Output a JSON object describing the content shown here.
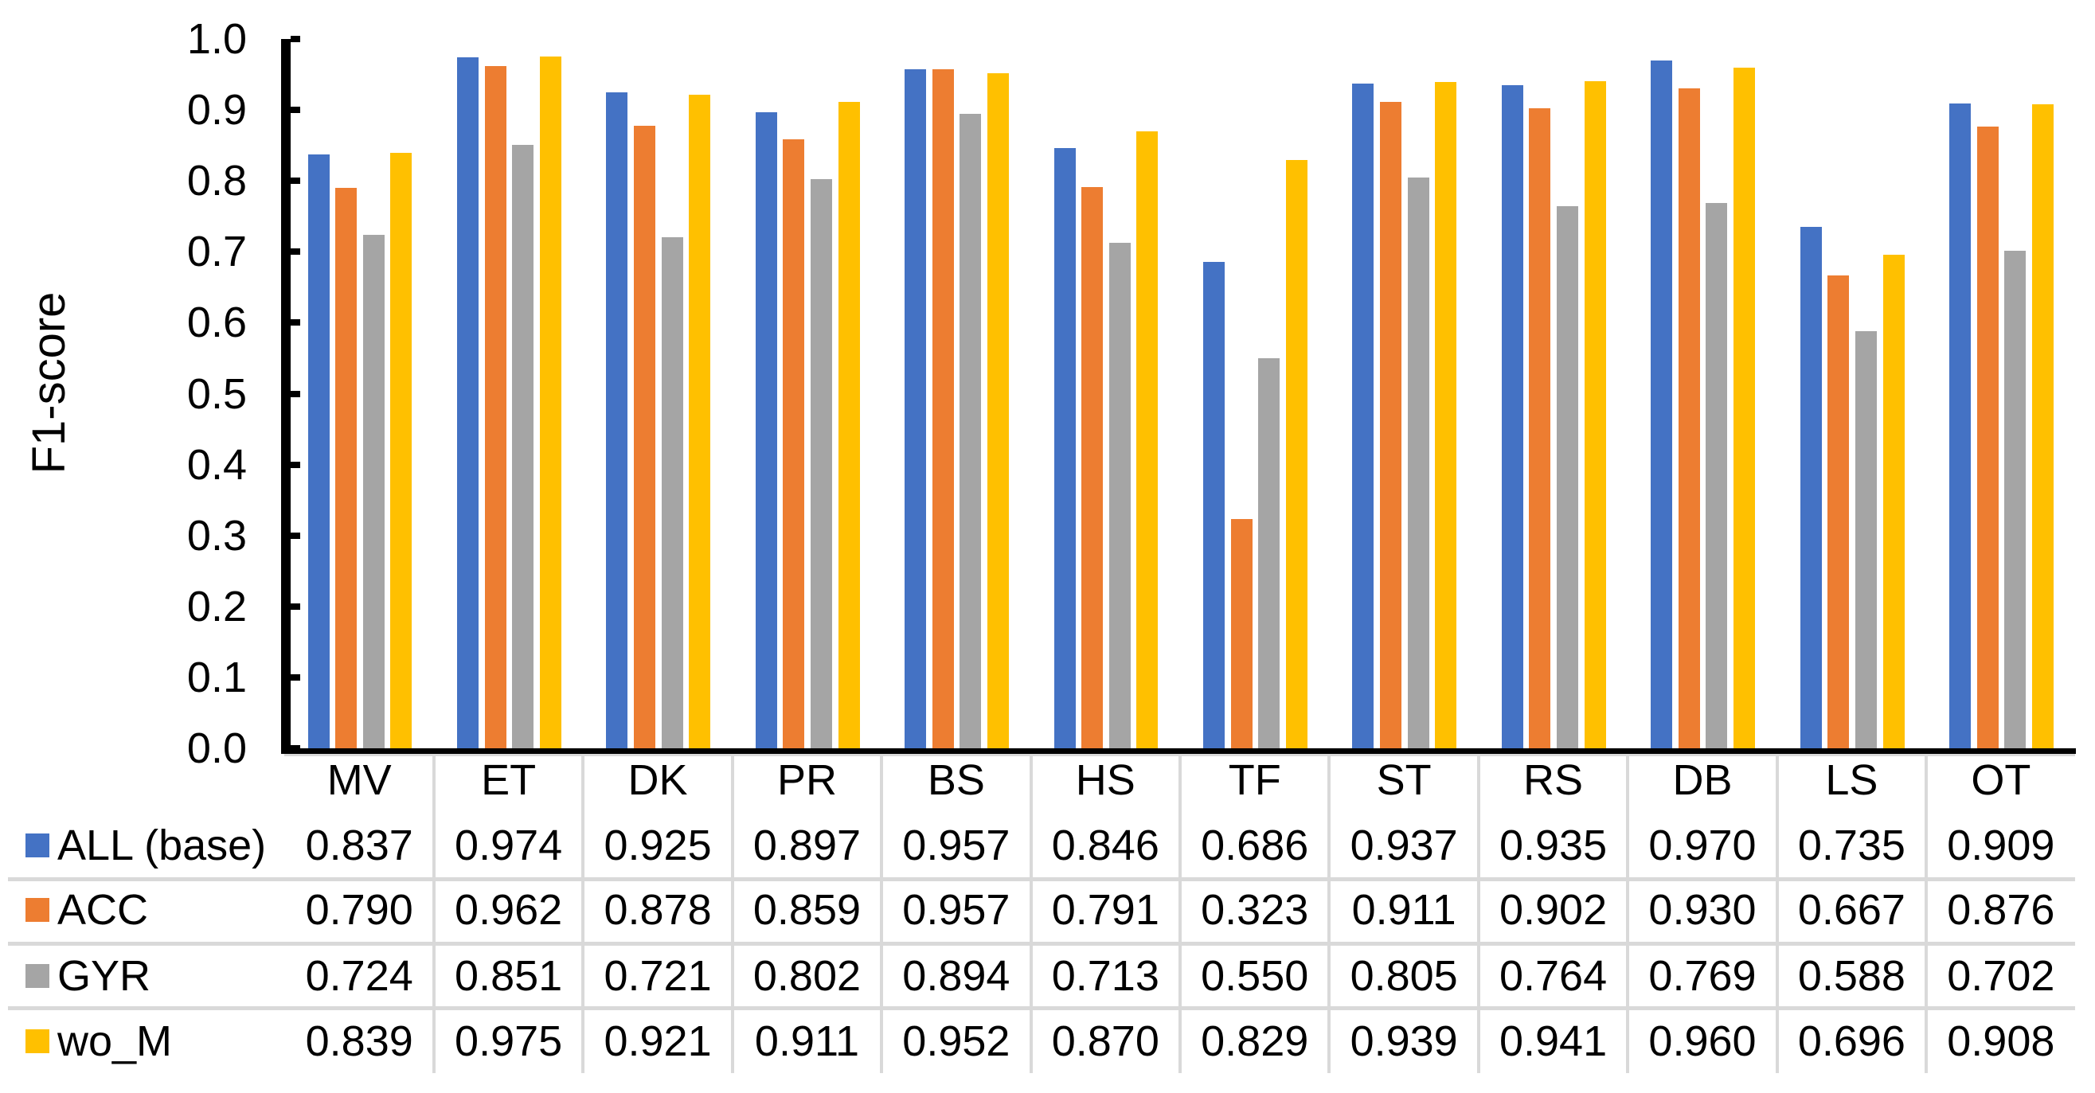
{
  "chart_data": {
    "type": "bar",
    "title": "",
    "ylabel": "F1-score",
    "xlabel": "",
    "categories": [
      "MV",
      "ET",
      "DK",
      "PR",
      "BS",
      "HS",
      "TF",
      "ST",
      "RS",
      "DB",
      "LS",
      "OT"
    ],
    "series": [
      {
        "name": "ALL (base)",
        "color": "#4472C4",
        "values": [
          0.837,
          0.974,
          0.925,
          0.897,
          0.957,
          0.846,
          0.686,
          0.937,
          0.935,
          0.97,
          0.735,
          0.909
        ]
      },
      {
        "name": "ACC",
        "color": "#ED7D31",
        "values": [
          0.79,
          0.962,
          0.878,
          0.859,
          0.957,
          0.791,
          0.323,
          0.911,
          0.902,
          0.93,
          0.667,
          0.876
        ]
      },
      {
        "name": "GYR",
        "color": "#A5A5A5",
        "values": [
          0.724,
          0.851,
          0.721,
          0.802,
          0.894,
          0.713,
          0.55,
          0.805,
          0.764,
          0.769,
          0.588,
          0.702
        ]
      },
      {
        "name": "wo_M",
        "color": "#FFC000",
        "values": [
          0.839,
          0.975,
          0.921,
          0.911,
          0.952,
          0.87,
          0.829,
          0.939,
          0.941,
          0.96,
          0.696,
          0.908
        ]
      }
    ],
    "y_ticks": [
      "1.0",
      "0.9",
      "0.8",
      "0.7",
      "0.6",
      "0.5",
      "0.4",
      "0.3",
      "0.2",
      "0.1",
      "0.0"
    ],
    "ylim": [
      0.0,
      1.0
    ],
    "grid": false,
    "legend_position": "data-table-left",
    "value_decimals": 3,
    "axis_color": "#000000",
    "table_grid_color": "#D9D9D9"
  }
}
